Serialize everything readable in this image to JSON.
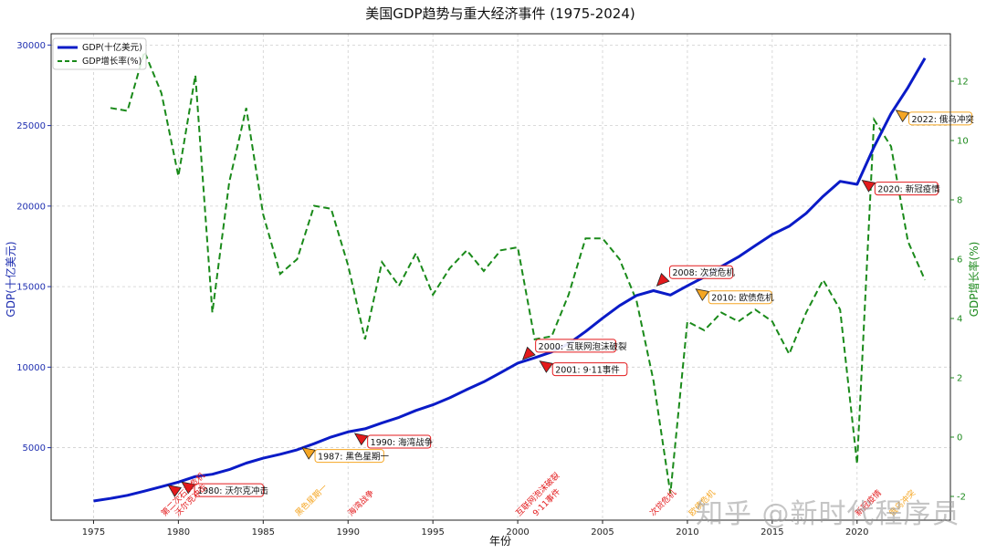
{
  "colors": {
    "gdp": "#0a1bc7",
    "growth": "#1a8a1a",
    "red": "#e31a1c",
    "orange": "#f5a623",
    "left_axis": "#1f2fb0",
    "right_axis": "#1e8a1e"
  },
  "watermark": "知乎 @新时代程序员",
  "chart_data": {
    "type": "line",
    "title": "美国GDP趋势与重大经济事件 (1975-2024)",
    "xlabel": "年份",
    "ylabel": "GDP(十亿美元)",
    "y2label": "GDP增长率(%)",
    "xlim": [
      1972.5,
      2025.5
    ],
    "ylim": [
      500,
      30700
    ],
    "y2lim": [
      -2.8,
      13.6
    ],
    "xticks": [
      1975,
      1980,
      1985,
      1990,
      1995,
      2000,
      2005,
      2010,
      2015,
      2020
    ],
    "yticks": [
      5000,
      10000,
      15000,
      20000,
      25000,
      30000
    ],
    "y2ticks": [
      -2,
      0,
      2,
      4,
      6,
      8,
      10,
      12
    ],
    "grid": true,
    "legend_position": "top-left",
    "series": [
      {
        "name": "GDP(十亿美元)",
        "axis": "left",
        "style": "solid",
        "x": [
          1975,
          1976,
          1977,
          1978,
          1979,
          1980,
          1981,
          1982,
          1983,
          1984,
          1985,
          1986,
          1987,
          1988,
          1989,
          1990,
          1991,
          1992,
          1993,
          1994,
          1995,
          1996,
          1997,
          1998,
          1999,
          2000,
          2001,
          2002,
          2003,
          2004,
          2005,
          2006,
          2007,
          2008,
          2009,
          2010,
          2011,
          2012,
          2013,
          2014,
          2015,
          2016,
          2017,
          2018,
          2019,
          2020,
          2021,
          2022,
          2023,
          2024
        ],
        "values": [
          1690,
          1850,
          2040,
          2300,
          2580,
          2860,
          3210,
          3350,
          3640,
          4040,
          4350,
          4590,
          4870,
          5250,
          5660,
          5980,
          6170,
          6540,
          6880,
          7310,
          7660,
          8100,
          8610,
          9090,
          9660,
          10250,
          10580,
          10940,
          11460,
          12210,
          13040,
          13820,
          14450,
          14750,
          14480,
          15050,
          15600,
          16250,
          16840,
          17550,
          18240,
          18750,
          19550,
          20610,
          21540,
          21350,
          23680,
          25750,
          27360,
          29180
        ]
      },
      {
        "name": "GDP增长率(%)",
        "axis": "right",
        "style": "dashed",
        "x": [
          1976,
          1977,
          1978,
          1979,
          1980,
          1981,
          1982,
          1983,
          1984,
          1985,
          1986,
          1987,
          1988,
          1989,
          1990,
          1991,
          1992,
          1993,
          1994,
          1995,
          1996,
          1997,
          1998,
          1999,
          2000,
          2001,
          2002,
          2003,
          2004,
          2005,
          2006,
          2007,
          2008,
          2009,
          2010,
          2011,
          2012,
          2013,
          2014,
          2015,
          2016,
          2017,
          2018,
          2019,
          2020,
          2021,
          2022,
          2023,
          2024
        ],
        "values": [
          11.1,
          11.0,
          13.0,
          11.6,
          8.8,
          12.2,
          4.2,
          8.6,
          11.1,
          7.5,
          5.5,
          6.0,
          7.8,
          7.7,
          5.8,
          3.3,
          5.9,
          5.1,
          6.2,
          4.8,
          5.7,
          6.3,
          5.6,
          6.3,
          6.4,
          3.3,
          3.4,
          4.8,
          6.7,
          6.7,
          6.0,
          4.6,
          1.9,
          -1.9,
          3.9,
          3.6,
          4.2,
          3.9,
          4.3,
          3.9,
          2.8,
          4.2,
          5.3,
          4.3,
          -0.9,
          10.7,
          9.8,
          6.6,
          5.3
        ]
      }
    ],
    "annotations": [
      {
        "text": "1979: 第二次石油危机",
        "x": 1979.4,
        "y": 2670,
        "color": "red",
        "box": false,
        "vlabel": "第二次石油危机"
      },
      {
        "text": "1980: 沃尔克冲击",
        "x": 1980.2,
        "y": 2870,
        "color": "red",
        "box": true,
        "vlabel": "沃尔克冲击"
      },
      {
        "text": "1987: 黑色星期一",
        "x": 1987.3,
        "y": 5000,
        "color": "orange",
        "box": true,
        "vlabel": "黑色星期一"
      },
      {
        "text": "1990: 海湾战争",
        "x": 1990.4,
        "y": 5880,
        "color": "red",
        "box": true,
        "vlabel": "海湾战争"
      },
      {
        "text": "2000: 互联网泡沫破裂",
        "x": 2000.3,
        "y": 10480,
        "color": "red",
        "box": true,
        "vlabel": "互联网泡沫破裂"
      },
      {
        "text": "2001: 9·11事件",
        "x": 2001.3,
        "y": 10380,
        "color": "red",
        "box": true,
        "vlabel": "9·11事件"
      },
      {
        "text": "2008: 次贷危机",
        "x": 2008.2,
        "y": 15050,
        "color": "red",
        "box": true,
        "vlabel": "次贷危机"
      },
      {
        "text": "2010: 欧债危机",
        "x": 2010.5,
        "y": 14850,
        "color": "orange",
        "box": true,
        "vlabel": "欧债危机"
      },
      {
        "text": "2020: 新冠疫情",
        "x": 2020.3,
        "y": 21600,
        "color": "red",
        "box": true,
        "vlabel": "新冠疫情"
      },
      {
        "text": "2022: 俄乌冲突",
        "x": 2022.3,
        "y": 25950,
        "color": "orange",
        "box": true,
        "vlabel": "俄乌冲突"
      }
    ]
  }
}
